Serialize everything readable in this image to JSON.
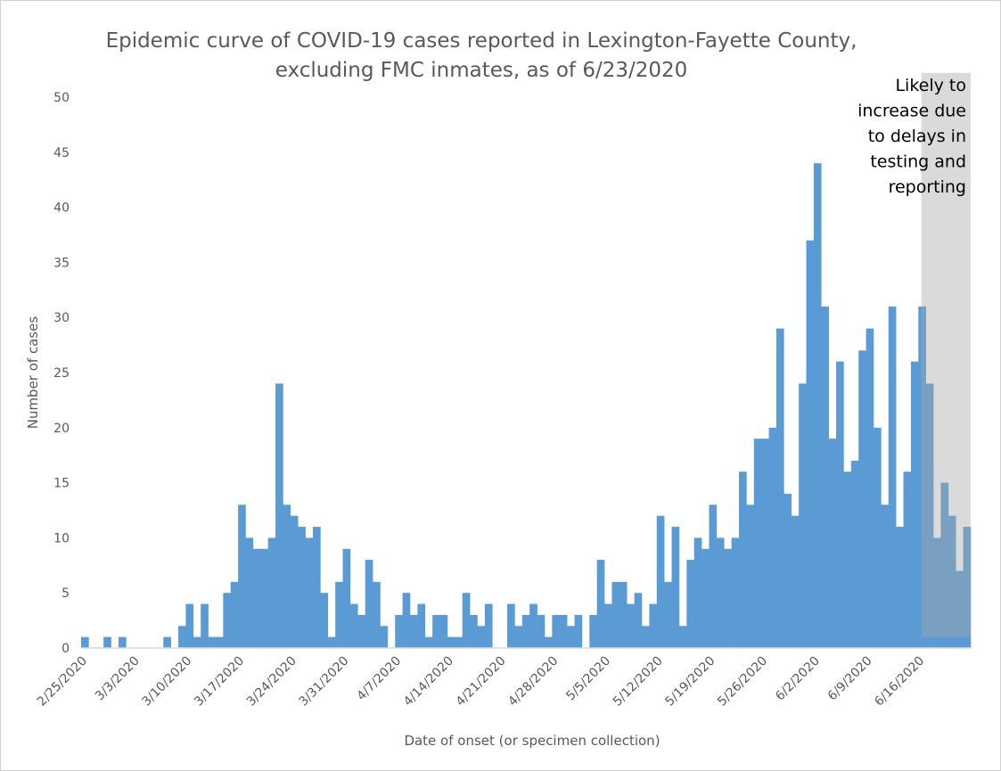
{
  "chart_data": {
    "type": "bar",
    "title": [
      "Epidemic curve of COVID-19 cases reported in Lexington-Fayette County,",
      "excluding FMC inmates, as of 6/23/2020"
    ],
    "xlabel": "Date of onset (or specimen collection)",
    "ylabel": "Number of cases",
    "ylim": [
      0,
      50
    ],
    "yticks": [
      0,
      5,
      10,
      15,
      20,
      25,
      30,
      35,
      40,
      45,
      50
    ],
    "start_date": "2/25/2020",
    "xtick_labels": [
      "2/25/2020",
      "3/3/2020",
      "3/10/2020",
      "3/17/2020",
      "3/24/2020",
      "3/31/2020",
      "4/7/2020",
      "4/14/2020",
      "4/21/2020",
      "4/28/2020",
      "5/5/2020",
      "5/12/2020",
      "5/19/2020",
      "5/26/2020",
      "6/2/2020",
      "6/9/2020",
      "6/16/2020"
    ],
    "xtick_every_days": 7,
    "values": [
      1,
      0,
      0,
      1,
      0,
      1,
      0,
      0,
      0,
      0,
      0,
      1,
      0,
      2,
      4,
      1,
      4,
      1,
      1,
      5,
      6,
      13,
      10,
      9,
      9,
      10,
      24,
      13,
      12,
      11,
      10,
      11,
      5,
      1,
      6,
      9,
      4,
      3,
      8,
      6,
      2,
      0,
      3,
      5,
      3,
      4,
      1,
      3,
      3,
      1,
      1,
      5,
      3,
      2,
      4,
      0,
      0,
      4,
      2,
      3,
      4,
      3,
      1,
      3,
      3,
      2,
      3,
      0,
      3,
      8,
      4,
      6,
      6,
      4,
      5,
      2,
      4,
      12,
      6,
      11,
      2,
      8,
      10,
      9,
      13,
      10,
      9,
      10,
      16,
      13,
      19,
      19,
      20,
      29,
      14,
      12,
      24,
      37,
      44,
      31,
      19,
      26,
      16,
      17,
      27,
      29,
      20,
      13,
      31,
      11,
      16,
      26,
      31,
      24,
      10,
      15,
      12,
      7,
      11
    ],
    "bar_color": "#5b9bd5",
    "shaded_region": {
      "x_start_day": 112.4,
      "x_end_day": 119,
      "y_low": 1,
      "y_high": 52.2,
      "color": "#a6a6a6",
      "label": [
        "Likely to",
        "increase due",
        "to delays in",
        "testing and",
        "reporting"
      ]
    },
    "grid": false
  }
}
